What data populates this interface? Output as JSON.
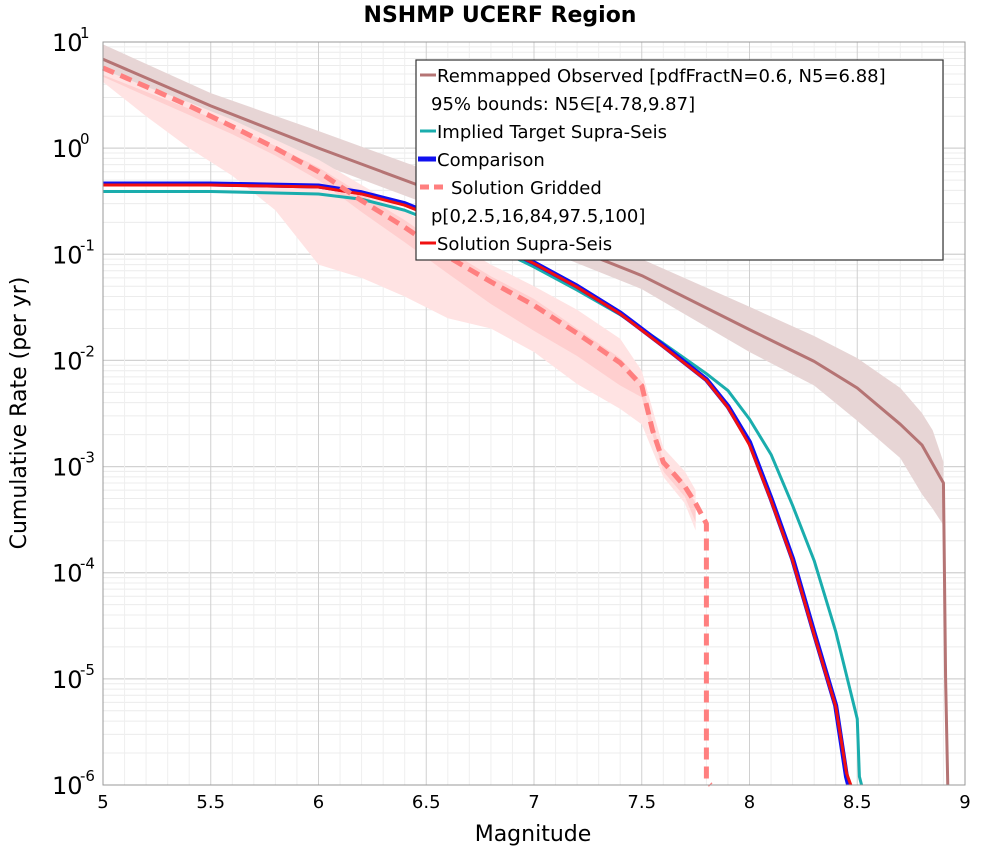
{
  "chart_data": {
    "type": "line",
    "title": "NSHMP UCERF Region",
    "xlabel": "Magnitude",
    "ylabel": "Cumulative Rate (per yr)",
    "xlim": [
      5,
      9
    ],
    "ylim": [
      1e-06,
      10
    ],
    "yscale": "log",
    "grid": true,
    "legend_position": "top-right",
    "x_ticks": [
      "5",
      "5.5",
      "6",
      "6.5",
      "7",
      "7.5",
      "8",
      "8.5",
      "9"
    ],
    "y_ticks": [
      {
        "base": "10",
        "exp": "-6"
      },
      {
        "base": "10",
        "exp": "-5"
      },
      {
        "base": "10",
        "exp": "-4"
      },
      {
        "base": "10",
        "exp": "-3"
      },
      {
        "base": "10",
        "exp": "-2"
      },
      {
        "base": "10",
        "exp": "-1"
      },
      {
        "base": "10",
        "exp": "0"
      },
      {
        "base": "10",
        "exp": "1"
      }
    ],
    "legend": [
      "Remmapped Observed [pdfFractN=0.6, N5=6.88]",
      "95% bounds: N5∈[4.78,9.87]",
      "Implied Target Supra-Seis",
      "Comparison",
      "Solution Gridded",
      "p[0,2.5,16,84,97.5,100]",
      "Solution Supra-Seis"
    ],
    "bands": [
      {
        "name": "95% bounds: N5∈[4.78,9.87]",
        "color": "#e7d5d5",
        "x": [
          5.0,
          5.5,
          6.0,
          6.5,
          7.0,
          7.5,
          8.0,
          8.3,
          8.5,
          8.7,
          8.8,
          8.85,
          8.9
        ],
        "upper": [
          9.5,
          3.3,
          1.45,
          0.62,
          0.25,
          0.09,
          0.032,
          0.017,
          0.0105,
          0.0055,
          0.0032,
          0.0022,
          0.0011
        ],
        "lower": [
          4.8,
          1.75,
          0.72,
          0.3,
          0.12,
          0.047,
          0.012,
          0.0058,
          0.0027,
          0.0012,
          0.00055,
          0.0004,
          0.00028
        ]
      },
      {
        "name": "p[0,2.5,16,84,97.5,100] outer",
        "color": "#ffe3e3",
        "x": [
          5.0,
          5.2,
          5.4,
          5.6,
          5.8,
          6.0,
          6.2,
          6.4,
          6.6,
          6.8,
          7.0,
          7.2,
          7.4,
          7.5,
          7.6,
          7.7,
          7.75
        ],
        "upper": [
          5.5,
          3.8,
          2.7,
          1.85,
          1.2,
          0.78,
          0.45,
          0.26,
          0.14,
          0.08,
          0.05,
          0.03,
          0.016,
          0.008,
          0.0015,
          0.0009,
          0.0006
        ],
        "lower": [
          4.2,
          2.0,
          1.0,
          0.55,
          0.26,
          0.08,
          0.06,
          0.04,
          0.025,
          0.02,
          0.012,
          0.006,
          0.0035,
          0.0025,
          0.0008,
          0.00045,
          0.00025
        ]
      },
      {
        "name": "p[0,2.5,16,84,97.5,100] inner",
        "color": "#ffcfcf",
        "x": [
          5.0,
          5.2,
          5.4,
          5.6,
          5.8,
          6.0,
          6.2,
          6.4,
          6.6,
          6.8,
          7.0,
          7.2,
          7.4,
          7.5,
          7.6,
          7.7,
          7.75
        ],
        "upper": [
          4.9,
          3.4,
          2.35,
          1.6,
          1.05,
          0.66,
          0.37,
          0.21,
          0.11,
          0.062,
          0.038,
          0.02,
          0.0105,
          0.0063,
          0.0011,
          0.0007,
          0.00045
        ],
        "lower": [
          4.7,
          3.1,
          2.05,
          1.35,
          0.85,
          0.5,
          0.25,
          0.13,
          0.066,
          0.034,
          0.019,
          0.011,
          0.0058,
          0.0045,
          0.0009,
          0.00052,
          0.0003
        ]
      }
    ],
    "series": [
      {
        "name": "Remmapped Observed [pdfFractN=0.6, N5=6.88]",
        "color": "#b57474",
        "style": "solid",
        "x": [
          5.0,
          5.5,
          6.0,
          6.5,
          7.0,
          7.5,
          8.0,
          8.3,
          8.5,
          8.7,
          8.8,
          8.9,
          8.91,
          8.92
        ],
        "y": [
          6.88,
          2.5,
          1.0,
          0.42,
          0.16,
          0.063,
          0.0195,
          0.0098,
          0.0055,
          0.0025,
          0.0016,
          0.0007,
          1e-05,
          1e-06
        ]
      },
      {
        "name": "Implied Target Supra-Seis",
        "color": "#1aadad",
        "style": "solid",
        "x": [
          5.0,
          5.5,
          6.0,
          6.2,
          6.4,
          6.6,
          6.8,
          7.0,
          7.2,
          7.4,
          7.6,
          7.8,
          7.9,
          8.0,
          8.1,
          8.2,
          8.3,
          8.4,
          8.5,
          8.51,
          8.52
        ],
        "y": [
          0.39,
          0.39,
          0.37,
          0.33,
          0.26,
          0.18,
          0.12,
          0.076,
          0.046,
          0.027,
          0.0145,
          0.0075,
          0.0052,
          0.0028,
          0.0013,
          0.00043,
          0.00013,
          2.8e-05,
          4.2e-06,
          1.2e-06,
          1e-06
        ]
      },
      {
        "name": "Comparison",
        "color": "#1010f0",
        "style": "solid",
        "x": [
          5.0,
          5.5,
          6.0,
          6.2,
          6.4,
          6.6,
          6.8,
          7.0,
          7.2,
          7.4,
          7.6,
          7.8,
          7.9,
          8.0,
          8.1,
          8.2,
          8.3,
          8.4,
          8.45,
          8.46
        ],
        "y": [
          0.46,
          0.46,
          0.44,
          0.38,
          0.3,
          0.205,
          0.13,
          0.083,
          0.05,
          0.028,
          0.0138,
          0.0066,
          0.0037,
          0.0017,
          0.0005,
          0.000135,
          2.7e-05,
          5.6e-06,
          1.2e-06,
          1e-06
        ]
      },
      {
        "name": "Solution Supra-Seis",
        "color": "#f01010",
        "style": "solid",
        "x": [
          5.0,
          5.5,
          6.0,
          6.2,
          6.4,
          6.6,
          6.8,
          7.0,
          7.2,
          7.4,
          7.6,
          7.8,
          7.9,
          8.0,
          8.1,
          8.2,
          8.3,
          8.4,
          8.45,
          8.47
        ],
        "y": [
          0.45,
          0.45,
          0.43,
          0.37,
          0.29,
          0.2,
          0.128,
          0.082,
          0.049,
          0.0275,
          0.0135,
          0.0065,
          0.0036,
          0.0016,
          0.00048,
          0.00013,
          2.6e-05,
          5.5e-06,
          1.3e-06,
          1e-06
        ]
      },
      {
        "name": "Solution Gridded",
        "color": "#ff7f7f",
        "style": "dashed",
        "x": [
          5.0,
          5.2,
          5.4,
          5.6,
          5.8,
          6.0,
          6.2,
          6.4,
          6.6,
          6.8,
          7.0,
          7.2,
          7.4,
          7.5,
          7.55,
          7.6,
          7.65,
          7.7,
          7.75,
          7.8,
          7.8,
          7.82
        ],
        "y": [
          5.7,
          3.8,
          2.5,
          1.6,
          1.0,
          0.6,
          0.32,
          0.18,
          0.095,
          0.055,
          0.033,
          0.018,
          0.0095,
          0.0058,
          0.0022,
          0.0011,
          0.00085,
          0.00065,
          0.00045,
          0.00029,
          1.1e-06,
          1e-06
        ]
      }
    ]
  }
}
